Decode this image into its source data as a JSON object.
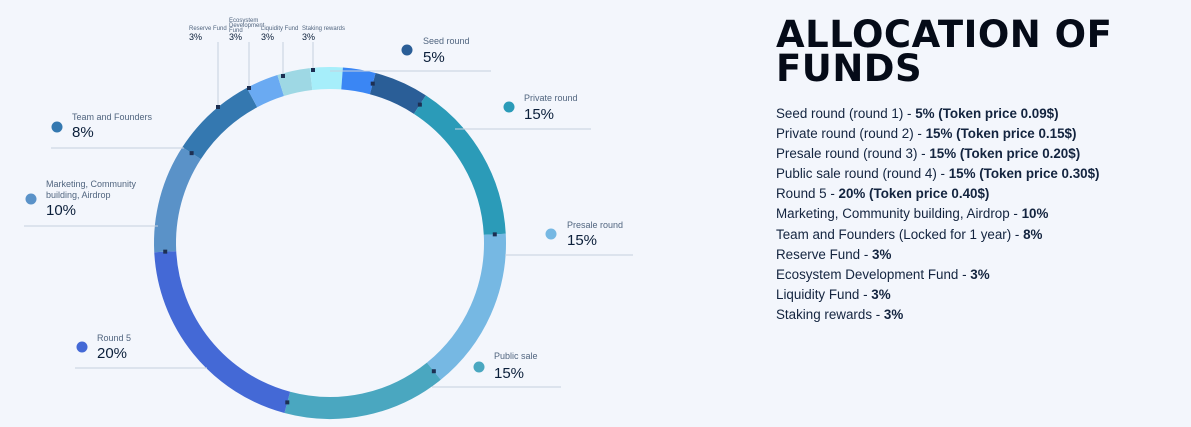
{
  "title": "ALLOCATION OF FUNDS",
  "chart_data": {
    "type": "pie",
    "style": "donut",
    "slices": [
      {
        "name": "Seed round",
        "value": 5,
        "label": "5%",
        "color": "#2a5e97"
      },
      {
        "name": "Private round",
        "value": 15,
        "label": "15%",
        "color": "#2b9bb8"
      },
      {
        "name": "Presale round",
        "value": 15,
        "label": "15%",
        "color": "#76b8e3"
      },
      {
        "name": "Public sale",
        "value": 15,
        "label": "15%",
        "color": "#4aa7c0"
      },
      {
        "name": "Round 5",
        "value": 20,
        "label": "20%",
        "color": "#4469d6"
      },
      {
        "name": "Marketing, Community building, Airdrop",
        "value": 10,
        "label": "10%",
        "color": "#5a92c8"
      },
      {
        "name": "Team and Founders",
        "value": 8,
        "label": "8%",
        "color": "#3478b0"
      },
      {
        "name": "Reserve Fund",
        "value": 3,
        "label": "3%",
        "color": "#6aaaf2"
      },
      {
        "name": "Ecosystem Development Fund",
        "value": 3,
        "label": "3%",
        "color": "#9ed8e4"
      },
      {
        "name": "Liquidity Fund",
        "value": 3,
        "label": "3%",
        "color": "#a6eefa"
      },
      {
        "name": "Staking rewards",
        "value": 3,
        "label": "3%",
        "color": "#3a86f4"
      }
    ]
  },
  "allocation_list": [
    {
      "text": "Seed round (round 1) - ",
      "bold": "5% (Token price 0.09$)"
    },
    {
      "text": "Private round (round 2) - ",
      "bold": "15% (Token price 0.15$)"
    },
    {
      "text": "Presale round (round 3) - ",
      "bold": "15% (Token price 0.20$)"
    },
    {
      "text": "Public sale round (round 4) - ",
      "bold": "15% (Token price 0.30$)"
    },
    {
      "text": "Round 5 - ",
      "bold": "20% (Token price 0.40$)"
    },
    {
      "text": "Marketing, Community building, Airdrop - ",
      "bold": "10%"
    },
    {
      "text": "Team and Founders (Locked for 1 year) - ",
      "bold": "8%"
    },
    {
      "text": "Reserve Fund - ",
      "bold": "3%"
    },
    {
      "text": "Ecosystem Development Fund - ",
      "bold": "3%"
    },
    {
      "text": "Liquidity Fund - ",
      "bold": "3%"
    },
    {
      "text": "Staking rewards - ",
      "bold": "3%"
    }
  ]
}
